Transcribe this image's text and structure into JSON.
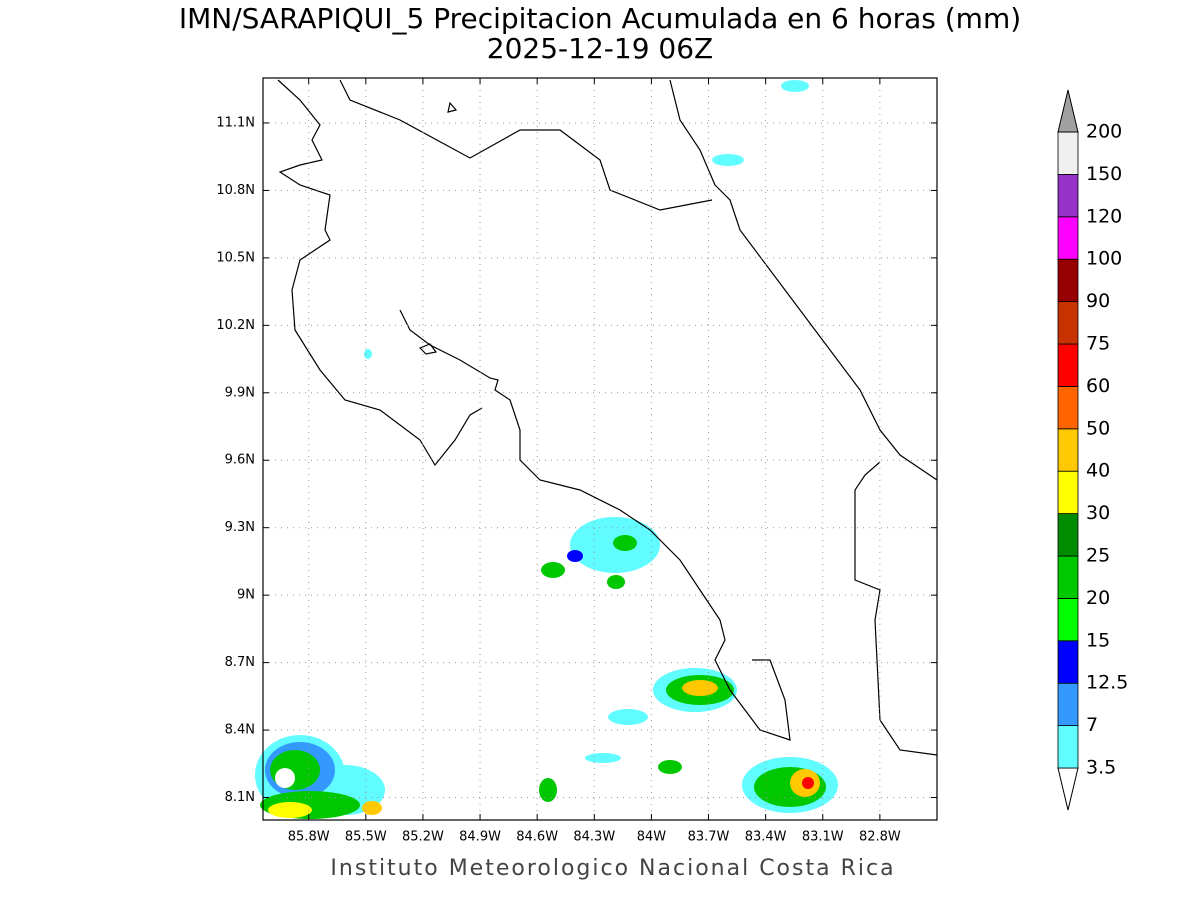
{
  "chart_data": {
    "type": "contour-map",
    "title": "IMN/SARAPIQUI_5 Precipitacion Acumulada en 6 horas (mm)",
    "subtitle": "2025-12-19 06Z",
    "footer": "Instituto Meteorologico Nacional Costa Rica",
    "xlim": [
      -86.04,
      -82.5
    ],
    "ylim": [
      8.0,
      11.3
    ],
    "xticks": [
      {
        "value": -85.8,
        "label": "85.8W"
      },
      {
        "value": -85.5,
        "label": "85.5W"
      },
      {
        "value": -85.2,
        "label": "85.2W"
      },
      {
        "value": -84.9,
        "label": "84.9W"
      },
      {
        "value": -84.6,
        "label": "84.6W"
      },
      {
        "value": -84.3,
        "label": "84.3W"
      },
      {
        "value": -84.0,
        "label": "84W"
      },
      {
        "value": -83.7,
        "label": "83.7W"
      },
      {
        "value": -83.4,
        "label": "83.4W"
      },
      {
        "value": -83.1,
        "label": "83.1W"
      },
      {
        "value": -82.8,
        "label": "82.8W"
      }
    ],
    "yticks": [
      {
        "value": 8.1,
        "label": "8.1N"
      },
      {
        "value": 8.4,
        "label": "8.4N"
      },
      {
        "value": 8.7,
        "label": "8.7N"
      },
      {
        "value": 9.0,
        "label": "9N"
      },
      {
        "value": 9.3,
        "label": "9.3N"
      },
      {
        "value": 9.6,
        "label": "9.6N"
      },
      {
        "value": 9.9,
        "label": "9.9N"
      },
      {
        "value": 10.2,
        "label": "10.2N"
      },
      {
        "value": 10.5,
        "label": "10.5N"
      },
      {
        "value": 10.8,
        "label": "10.8N"
      },
      {
        "value": 11.1,
        "label": "11.1N"
      }
    ],
    "grid": true,
    "colorbar": {
      "levels": [
        3.5,
        7,
        12.5,
        15,
        20,
        25,
        30,
        40,
        50,
        60,
        75,
        90,
        100,
        120,
        150,
        200
      ],
      "colors": [
        "#ffffff",
        "#60fcff",
        "#3399ff",
        "#0000ff",
        "#00ff00",
        "#00c800",
        "#008c00",
        "#ffff00",
        "#ffc800",
        "#ff6400",
        "#ff0000",
        "#c83200",
        "#960000",
        "#ff00ff",
        "#9632c8",
        "#f0f0f0",
        "#a0a0a0"
      ]
    }
  }
}
